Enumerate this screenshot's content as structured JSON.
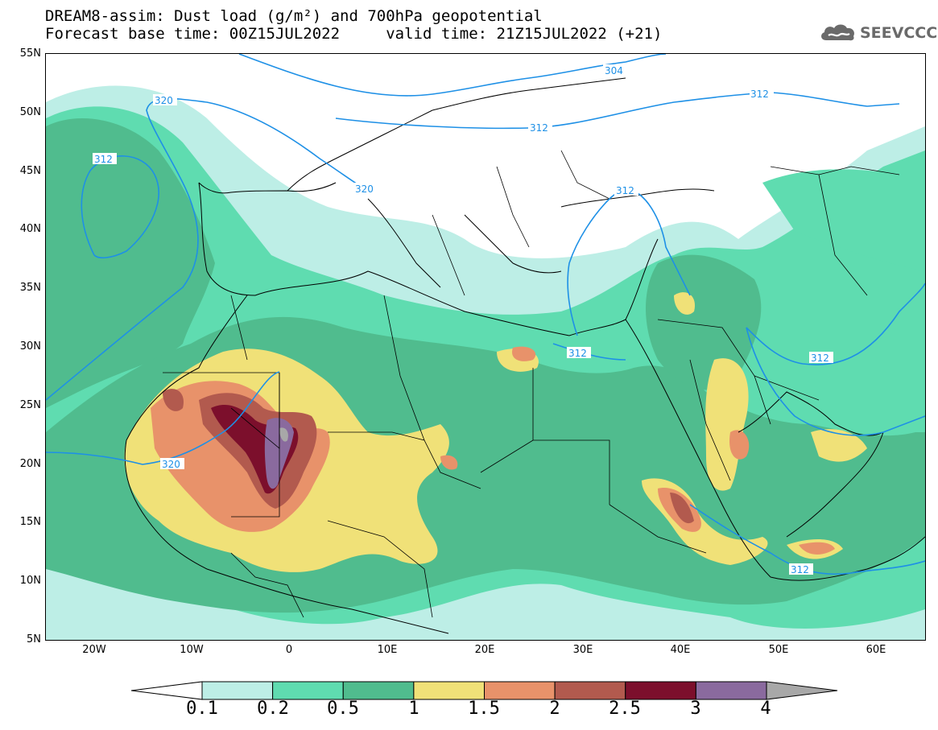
{
  "title_line1": "DREAM8-assim: Dust load (g/m²) and 700hPa geopotential",
  "title_line2": "Forecast base time: 00Z15JUL2022     valid time: 21Z15JUL2022 (+21)",
  "logo": {
    "text": "SEEVCCC",
    "icon": "cloud-icon",
    "color": "#6a6a6a"
  },
  "map": {
    "lat_labels": [
      "55N",
      "50N",
      "45N",
      "40N",
      "35N",
      "30N",
      "25N",
      "20N",
      "15N",
      "10N",
      "5N"
    ],
    "lon_labels": [
      "20W",
      "10W",
      "0",
      "10E",
      "20E",
      "30E",
      "40E",
      "50E",
      "60E"
    ],
    "lon_range": [
      -25,
      65
    ],
    "lat_range": [
      5,
      55
    ],
    "contour_labels": [
      "304",
      "312",
      "312",
      "312",
      "312",
      "312",
      "312",
      "312",
      "320",
      "320",
      "320"
    ]
  },
  "colorbar": {
    "labels": [
      "0.1",
      "0.2",
      "0.5",
      "1",
      "1.5",
      "2",
      "2.5",
      "3",
      "4"
    ],
    "colors": [
      "#bdeee6",
      "#5fdcb0",
      "#50bc8e",
      "#f0e178",
      "#e8926a",
      "#b25a4e",
      "#7c0f2c",
      "#8a6a9e",
      "#a8a8a8"
    ]
  }
}
